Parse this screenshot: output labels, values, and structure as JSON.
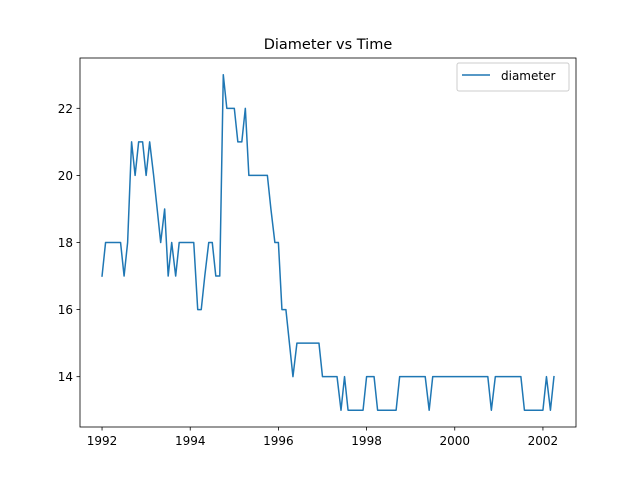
{
  "chart_data": {
    "type": "line",
    "title": "Diameter vs Time",
    "xlabel": "",
    "ylabel": "",
    "x_unit": "decimal year",
    "xlim": [
      1991.5,
      2002.75
    ],
    "ylim": [
      12.5,
      23.5
    ],
    "x_ticks": [
      1992,
      1994,
      1996,
      1998,
      2000,
      2002
    ],
    "y_ticks": [
      14,
      16,
      18,
      20,
      22
    ],
    "grid": false,
    "legend_position": "top-right",
    "series": [
      {
        "name": "diameter",
        "color": "#1f77b4",
        "x": [
          1992.0,
          1992.08,
          1992.17,
          1992.25,
          1992.33,
          1992.42,
          1992.5,
          1992.58,
          1992.67,
          1992.75,
          1992.83,
          1992.92,
          1993.0,
          1993.08,
          1993.17,
          1993.25,
          1993.33,
          1993.42,
          1993.5,
          1993.58,
          1993.67,
          1993.75,
          1993.83,
          1993.92,
          1994.0,
          1994.08,
          1994.17,
          1994.25,
          1994.33,
          1994.42,
          1994.5,
          1994.58,
          1994.67,
          1994.75,
          1994.83,
          1994.92,
          1995.0,
          1995.08,
          1995.17,
          1995.25,
          1995.33,
          1995.42,
          1995.5,
          1995.58,
          1995.67,
          1995.75,
          1995.83,
          1995.92,
          1996.0,
          1996.08,
          1996.17,
          1996.25,
          1996.33,
          1996.42,
          1996.5,
          1996.58,
          1996.67,
          1996.75,
          1996.83,
          1996.92,
          1997.0,
          1997.08,
          1997.17,
          1997.25,
          1997.33,
          1997.42,
          1997.5,
          1997.58,
          1997.67,
          1997.75,
          1997.83,
          1997.92,
          1998.0,
          1998.08,
          1998.17,
          1998.25,
          1998.33,
          1998.42,
          1998.5,
          1998.58,
          1998.67,
          1998.75,
          1998.83,
          1998.92,
          1999.0,
          1999.08,
          1999.17,
          1999.25,
          1999.33,
          1999.42,
          1999.5,
          1999.58,
          1999.67,
          1999.75,
          1999.83,
          1999.92,
          2000.0,
          2000.08,
          2000.17,
          2000.25,
          2000.33,
          2000.42,
          2000.5,
          2000.58,
          2000.67,
          2000.75,
          2000.83,
          2000.92,
          2001.0,
          2001.08,
          2001.17,
          2001.25,
          2001.33,
          2001.42,
          2001.5,
          2001.58,
          2001.67,
          2001.75,
          2001.83,
          2001.92,
          2002.0,
          2002.08,
          2002.17,
          2002.25
        ],
        "y": [
          17,
          18,
          18,
          18,
          18,
          18,
          17,
          18,
          21,
          20,
          21,
          21,
          20,
          21,
          20,
          19,
          18,
          19,
          17,
          18,
          17,
          18,
          18,
          18,
          18,
          18,
          16,
          16,
          17,
          18,
          18,
          17,
          17,
          23,
          22,
          22,
          22,
          21,
          21,
          22,
          20,
          20,
          20,
          20,
          20,
          20,
          19,
          18,
          18,
          16,
          16,
          15,
          14,
          15,
          15,
          15,
          15,
          15,
          15,
          15,
          14,
          14,
          14,
          14,
          14,
          13,
          14,
          13,
          13,
          13,
          13,
          13,
          14,
          14,
          14,
          13,
          13,
          13,
          13,
          13,
          13,
          14,
          14,
          14,
          14,
          14,
          14,
          14,
          14,
          13,
          14,
          14,
          14,
          14,
          14,
          14,
          14,
          14,
          14,
          14,
          14,
          14,
          14,
          14,
          14,
          14,
          13,
          14,
          14,
          14,
          14,
          14,
          14,
          14,
          14,
          13,
          13,
          13,
          13,
          13,
          13,
          14,
          13,
          14
        ]
      }
    ]
  }
}
